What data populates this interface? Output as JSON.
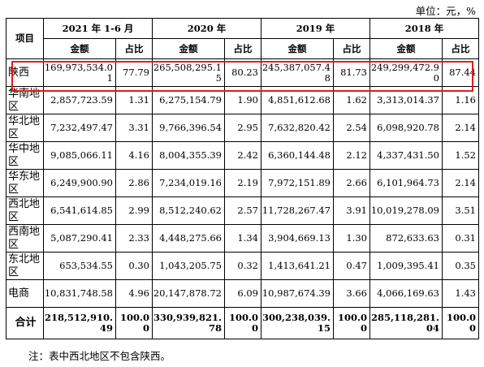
{
  "unit_label": "单位：元，%",
  "header": {
    "item_label": "项目",
    "periods": [
      "2021 年 1-6 月",
      "2020 年",
      "2019 年",
      "2018 年"
    ],
    "amount_label": "金额",
    "ratio_label": "占比"
  },
  "rows": [
    {
      "name": "陕西",
      "cells": [
        "169,973,534.01",
        "77.79",
        "265,508,295.15",
        "80.23",
        "245,387,057.48",
        "81.73",
        "249,299,472.90",
        "87.44"
      ]
    },
    {
      "name": "华南地区",
      "cells": [
        "2,857,723.59",
        "1.31",
        "6,275,154.79",
        "1.90",
        "4,851,612.68",
        "1.62",
        "3,313,014.37",
        "1.16"
      ]
    },
    {
      "name": "华北地区",
      "cells": [
        "7,232,497.47",
        "3.31",
        "9,766,396.54",
        "2.95",
        "7,632,820.42",
        "2.54",
        "6,098,920.78",
        "2.14"
      ]
    },
    {
      "name": "华中地区",
      "cells": [
        "9,085,066.11",
        "4.16",
        "8,004,355.39",
        "2.42",
        "6,360,144.48",
        "2.12",
        "4,337,431.50",
        "1.52"
      ]
    },
    {
      "name": "华东地区",
      "cells": [
        "6,249,900.90",
        "2.86",
        "7,234,019.16",
        "2.19",
        "7,972,151.89",
        "2.66",
        "6,101,964.73",
        "2.14"
      ]
    },
    {
      "name": "西北地区",
      "cells": [
        "6,541,614.85",
        "2.99",
        "8,512,240.62",
        "2.57",
        "11,728,267.47",
        "3.91",
        "10,019,278.09",
        "3.51"
      ]
    },
    {
      "name": "西南地区",
      "cells": [
        "5,087,290.41",
        "2.33",
        "4,448,275.66",
        "1.34",
        "3,904,669.13",
        "1.30",
        "872,633.63",
        "0.31"
      ]
    },
    {
      "name": "东北地区",
      "cells": [
        "653,534.55",
        "0.30",
        "1,043,205.75",
        "0.32",
        "1,413,641.21",
        "0.47",
        "1,009,395.41",
        "0.35"
      ]
    },
    {
      "name": "电商",
      "cells": [
        "10,831,748.58",
        "4.96",
        "20,147,878.72",
        "6.09",
        "10,987,674.39",
        "3.66",
        "4,066,169.63",
        "1.43"
      ]
    }
  ],
  "total": {
    "name": "合计",
    "cells": [
      "218,512,910.49",
      "100.00",
      "330,939,821.78",
      "100.00",
      "300,238,039.15",
      "100.00",
      "285,118,281.04",
      "100.00"
    ]
  },
  "note": "注：表中西北地区不包含陕西。",
  "highlight_color": "#e01c1c"
}
